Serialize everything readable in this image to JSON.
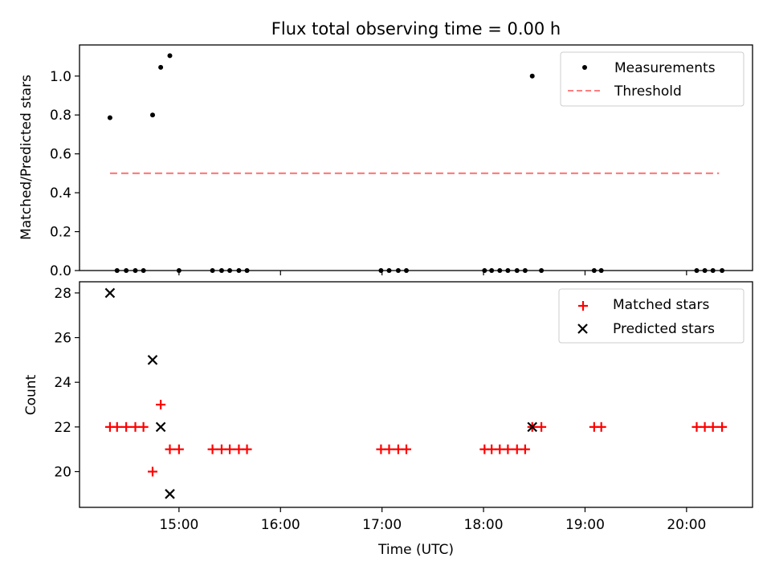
{
  "chart_data": [
    {
      "type": "scatter",
      "title": "Flux total observing time = 0.00 h",
      "ylabel": "Matched/Predicted stars",
      "xlim": [
        14.02,
        20.65
      ],
      "ylim": [
        0,
        1.16
      ],
      "yticks": [
        0.0,
        0.2,
        0.4,
        0.6,
        0.8,
        1.0
      ],
      "ytick_labels": [
        "0.0",
        "0.2",
        "0.4",
        "0.6",
        "0.8",
        "1.0"
      ],
      "xticks": [
        15,
        16,
        17,
        18,
        19,
        20
      ],
      "legend": {
        "location": "top-right",
        "entries": [
          "Measurements",
          "Threshold"
        ]
      },
      "series": [
        {
          "name": "Measurements",
          "marker": "dot",
          "color": "#000000",
          "x": [
            14.32,
            14.39,
            14.48,
            14.57,
            14.65,
            14.74,
            14.82,
            14.91,
            15.0,
            15.33,
            15.42,
            15.5,
            15.59,
            15.67,
            16.99,
            17.07,
            17.16,
            17.24,
            18.01,
            18.08,
            18.16,
            18.24,
            18.33,
            18.41,
            18.48,
            18.57,
            19.09,
            19.16,
            20.1,
            20.18,
            20.26,
            20.35
          ],
          "y": [
            0.786,
            0.0,
            0.0,
            0.0,
            0.0,
            0.8,
            1.045,
            1.105,
            0.0,
            0.0,
            0.0,
            0.0,
            0.0,
            0.0,
            0.0,
            0.0,
            0.0,
            0.0,
            0.0,
            0.0,
            0.0,
            0.0,
            0.0,
            0.0,
            1.0,
            0.0,
            0.0,
            0.0,
            0.0,
            0.0,
            0.0,
            0.0
          ]
        },
        {
          "name": "Threshold",
          "marker": "dashed-line",
          "color": "#ff7f7f",
          "x": [
            14.32,
            20.32
          ],
          "y": [
            0.5,
            0.5
          ]
        }
      ]
    },
    {
      "type": "scatter",
      "title": "",
      "xlabel": "Time (UTC)",
      "ylabel": "Count",
      "xlim": [
        14.02,
        20.65
      ],
      "ylim": [
        18.4,
        28.5
      ],
      "yticks": [
        20,
        22,
        24,
        26,
        28
      ],
      "ytick_labels": [
        "20",
        "22",
        "24",
        "26",
        "28"
      ],
      "xticks": [
        15,
        16,
        17,
        18,
        19,
        20
      ],
      "xtick_labels": [
        "15:00",
        "16:00",
        "17:00",
        "18:00",
        "19:00",
        "20:00"
      ],
      "legend": {
        "location": "top-right",
        "entries": [
          "Matched stars",
          "Predicted stars"
        ]
      },
      "series": [
        {
          "name": "Matched stars",
          "marker": "plus",
          "color": "#ff0000",
          "x": [
            14.32,
            14.39,
            14.48,
            14.57,
            14.65,
            14.74,
            14.82,
            14.91,
            15.0,
            15.33,
            15.42,
            15.5,
            15.59,
            15.67,
            16.99,
            17.07,
            17.16,
            17.24,
            18.01,
            18.08,
            18.16,
            18.24,
            18.33,
            18.41,
            18.48,
            18.57,
            19.09,
            19.16,
            20.1,
            20.18,
            20.26,
            20.35
          ],
          "y": [
            22,
            22,
            22,
            22,
            22,
            20,
            23,
            21,
            21,
            21,
            21,
            21,
            21,
            21,
            21,
            21,
            21,
            21,
            21,
            21,
            21,
            21,
            21,
            21,
            22,
            22,
            22,
            22,
            22,
            22,
            22,
            22
          ]
        },
        {
          "name": "Predicted stars",
          "marker": "x",
          "color": "#000000",
          "x": [
            14.32,
            14.74,
            14.82,
            14.91,
            18.48
          ],
          "y": [
            28,
            25,
            22,
            19,
            22
          ]
        }
      ]
    }
  ]
}
